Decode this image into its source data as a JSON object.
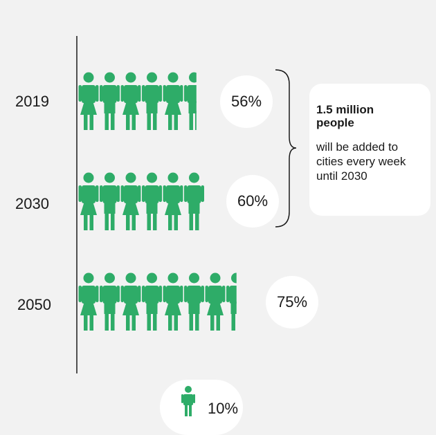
{
  "chart_data": {
    "type": "pictograph",
    "unit_percent": 10,
    "categories": [
      "2019",
      "2030",
      "2050"
    ],
    "values": [
      56,
      60,
      75
    ],
    "value_labels": [
      "56%",
      "60%",
      "75%"
    ],
    "annotation": {
      "headline": "1.5 million people",
      "body": "will be added to cities every week until 2030",
      "spans": [
        "2019",
        "2030"
      ]
    },
    "legend": {
      "label": "10%",
      "meaning": "one figure"
    }
  },
  "colors": {
    "figure": "#2eac68",
    "background": "#f2f2f2",
    "bubble": "#ffffff",
    "axis": "#1a1a1a"
  }
}
